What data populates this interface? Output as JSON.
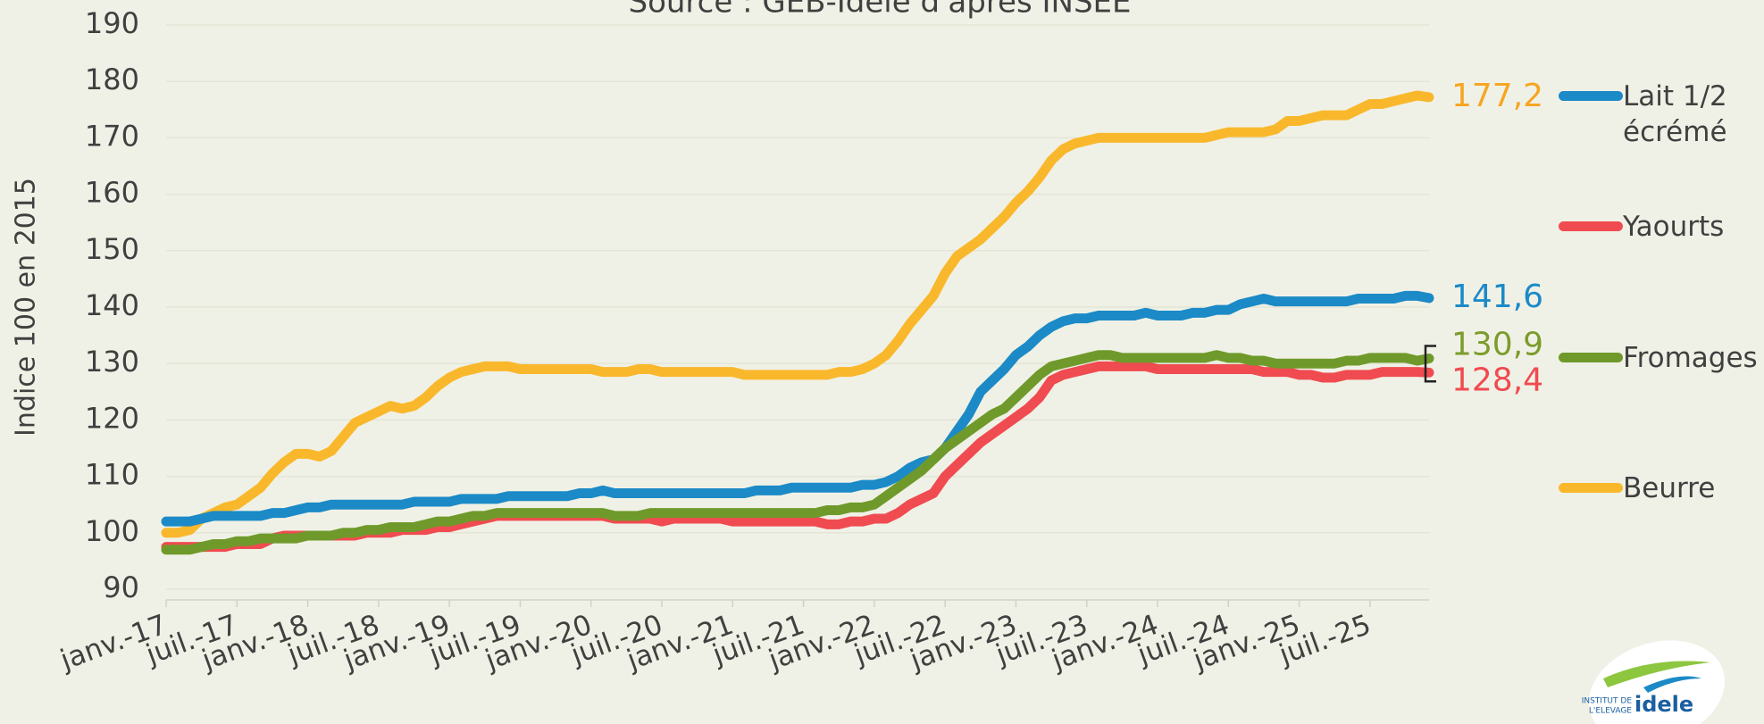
{
  "chart_data": {
    "type": "line",
    "title": "Source : GEB-Idele d'après INSEE",
    "y_label": "Indice 100 en 2015",
    "categories": [
      "janv.-17",
      null,
      null,
      null,
      null,
      null,
      "juil.-17",
      null,
      null,
      null,
      null,
      null,
      "janv.-18",
      null,
      null,
      null,
      null,
      null,
      "juil.-18",
      null,
      null,
      null,
      null,
      null,
      "janv.-19",
      null,
      null,
      null,
      null,
      null,
      "juil.-19",
      null,
      null,
      null,
      null,
      null,
      "janv.-20",
      null,
      null,
      null,
      null,
      null,
      "juil.-20",
      null,
      null,
      null,
      null,
      null,
      "janv.-21",
      null,
      null,
      null,
      null,
      null,
      "juil.-21",
      null,
      null,
      null,
      null,
      null,
      "janv.-22",
      null,
      null,
      null,
      null,
      null,
      "juil.-22",
      null,
      null,
      null,
      null,
      null,
      "janv.-23",
      null,
      null,
      null,
      null,
      null,
      "juil.-23",
      null,
      null,
      null,
      null,
      null,
      "janv.-24",
      null,
      null,
      null,
      null,
      null,
      "juil.-24",
      null,
      null,
      null,
      null,
      null,
      "janv.-25",
      null,
      null,
      null,
      null,
      null,
      "juil.-25",
      null,
      null,
      null,
      null,
      null
    ],
    "ylim": [
      90,
      190
    ],
    "yticks": [
      90,
      100,
      110,
      120,
      130,
      140,
      150,
      160,
      170,
      180,
      190
    ],
    "grid": true,
    "legend": "right",
    "series": [
      {
        "name": "Lait 1/2 écrémé",
        "color": "#1b8ac7",
        "end_label": "141,6",
        "values": [
          102,
          102,
          102,
          102.5,
          103,
          103,
          103,
          103,
          103,
          103.5,
          103.5,
          104,
          104.5,
          104.5,
          105,
          105,
          105,
          105,
          105,
          105,
          105,
          105.5,
          105.5,
          105.5,
          105.5,
          106,
          106,
          106,
          106,
          106.5,
          106.5,
          106.5,
          106.5,
          106.5,
          106.5,
          107,
          107,
          107.5,
          107,
          107,
          107,
          107,
          107,
          107,
          107,
          107,
          107,
          107,
          107,
          107,
          107.5,
          107.5,
          107.5,
          108,
          108,
          108,
          108,
          108,
          108,
          108.5,
          108.5,
          109,
          110,
          111.5,
          112.5,
          113,
          115,
          118,
          121,
          125,
          127,
          129,
          131.5,
          133,
          135,
          136.5,
          137.5,
          138,
          138,
          138.5,
          138.5,
          138.5,
          138.5,
          139,
          138.5,
          138.5,
          138.5,
          139,
          139,
          139.5,
          139.5,
          140.5,
          141,
          141.5,
          141,
          141,
          141,
          141,
          141,
          141,
          141,
          141.5,
          141.5,
          141.5,
          141.5,
          142,
          142,
          141.6
        ]
      },
      {
        "name": "Yaourts",
        "color": "#f04b50",
        "end_label": "128,4",
        "values": [
          97.5,
          97.5,
          97.5,
          97.5,
          97.5,
          97.5,
          98,
          98,
          98,
          99,
          99.5,
          99.5,
          99.5,
          99.5,
          99.5,
          99.5,
          99.5,
          100,
          100,
          100,
          100.5,
          100.5,
          100.5,
          101,
          101,
          101.5,
          102,
          102.5,
          103,
          103,
          103,
          103,
          103,
          103,
          103,
          103,
          103,
          103,
          102.5,
          102.5,
          102.5,
          102.5,
          102,
          102.5,
          102.5,
          102.5,
          102.5,
          102.5,
          102,
          102,
          102,
          102,
          102,
          102,
          102,
          102,
          101.5,
          101.5,
          102,
          102,
          102.5,
          102.5,
          103.5,
          105,
          106,
          107,
          110,
          112,
          114,
          116,
          117.5,
          119,
          120.5,
          122,
          124,
          127,
          128,
          128.5,
          129,
          129.5,
          129.5,
          129.5,
          129.5,
          129.5,
          129,
          129,
          129,
          129,
          129,
          129,
          129,
          129,
          129,
          128.5,
          128.5,
          128.5,
          128,
          128,
          127.5,
          127.5,
          128,
          128,
          128,
          128.5,
          128.5,
          128.5,
          128.5,
          128.4
        ]
      },
      {
        "name": "Fromages",
        "color": "#6f9a2b",
        "end_label": "130,9",
        "values": [
          97,
          97,
          97,
          97.5,
          98,
          98,
          98.5,
          98.5,
          99,
          99,
          99,
          99,
          99.5,
          99.5,
          99.5,
          100,
          100,
          100.5,
          100.5,
          101,
          101,
          101,
          101.5,
          102,
          102,
          102.5,
          103,
          103,
          103.5,
          103.5,
          103.5,
          103.5,
          103.5,
          103.5,
          103.5,
          103.5,
          103.5,
          103.5,
          103,
          103,
          103,
          103.5,
          103.5,
          103.5,
          103.5,
          103.5,
          103.5,
          103.5,
          103.5,
          103.5,
          103.5,
          103.5,
          103.5,
          103.5,
          103.5,
          103.5,
          104,
          104,
          104.5,
          104.5,
          105,
          106.5,
          108,
          109.5,
          111,
          113,
          115,
          116.5,
          118,
          119.5,
          121,
          122,
          124,
          126,
          128,
          129.5,
          130,
          130.5,
          131,
          131.5,
          131.5,
          131,
          131,
          131,
          131,
          131,
          131,
          131,
          131,
          131.5,
          131,
          131,
          130.5,
          130.5,
          130,
          130,
          130,
          130,
          130,
          130,
          130.5,
          130.5,
          131,
          131,
          131,
          131,
          130.5,
          130.9
        ]
      },
      {
        "name": "Beurre",
        "color": "#f9b82c",
        "end_label": "177,2",
        "values": [
          100,
          100,
          100.5,
          102.5,
          103.5,
          104.5,
          105,
          106.5,
          108,
          110.5,
          112.5,
          114,
          114,
          113.5,
          114.5,
          117,
          119.5,
          120.5,
          121.5,
          122.5,
          122,
          122.5,
          124,
          126,
          127.5,
          128.5,
          129,
          129.5,
          129.5,
          129.5,
          129,
          129,
          129,
          129,
          129,
          129,
          129,
          128.5,
          128.5,
          128.5,
          129,
          129,
          128.5,
          128.5,
          128.5,
          128.5,
          128.5,
          128.5,
          128.5,
          128,
          128,
          128,
          128,
          128,
          128,
          128,
          128,
          128.5,
          128.5,
          129,
          130,
          131.5,
          134,
          137,
          139.5,
          142,
          146,
          149,
          150.5,
          152,
          154,
          156,
          158.5,
          160.5,
          163,
          166,
          168,
          169,
          169.5,
          170,
          170,
          170,
          170,
          170,
          170,
          170,
          170,
          170,
          170,
          170.5,
          171,
          171,
          171,
          171,
          171.5,
          173,
          173,
          173.5,
          174,
          174,
          174,
          175,
          176,
          176,
          176.5,
          177,
          177.5,
          177.2
        ]
      }
    ]
  },
  "logo": {
    "line1": "INSTITUT DE",
    "line2": "L'ELEVAGE",
    "brand": "idele"
  }
}
